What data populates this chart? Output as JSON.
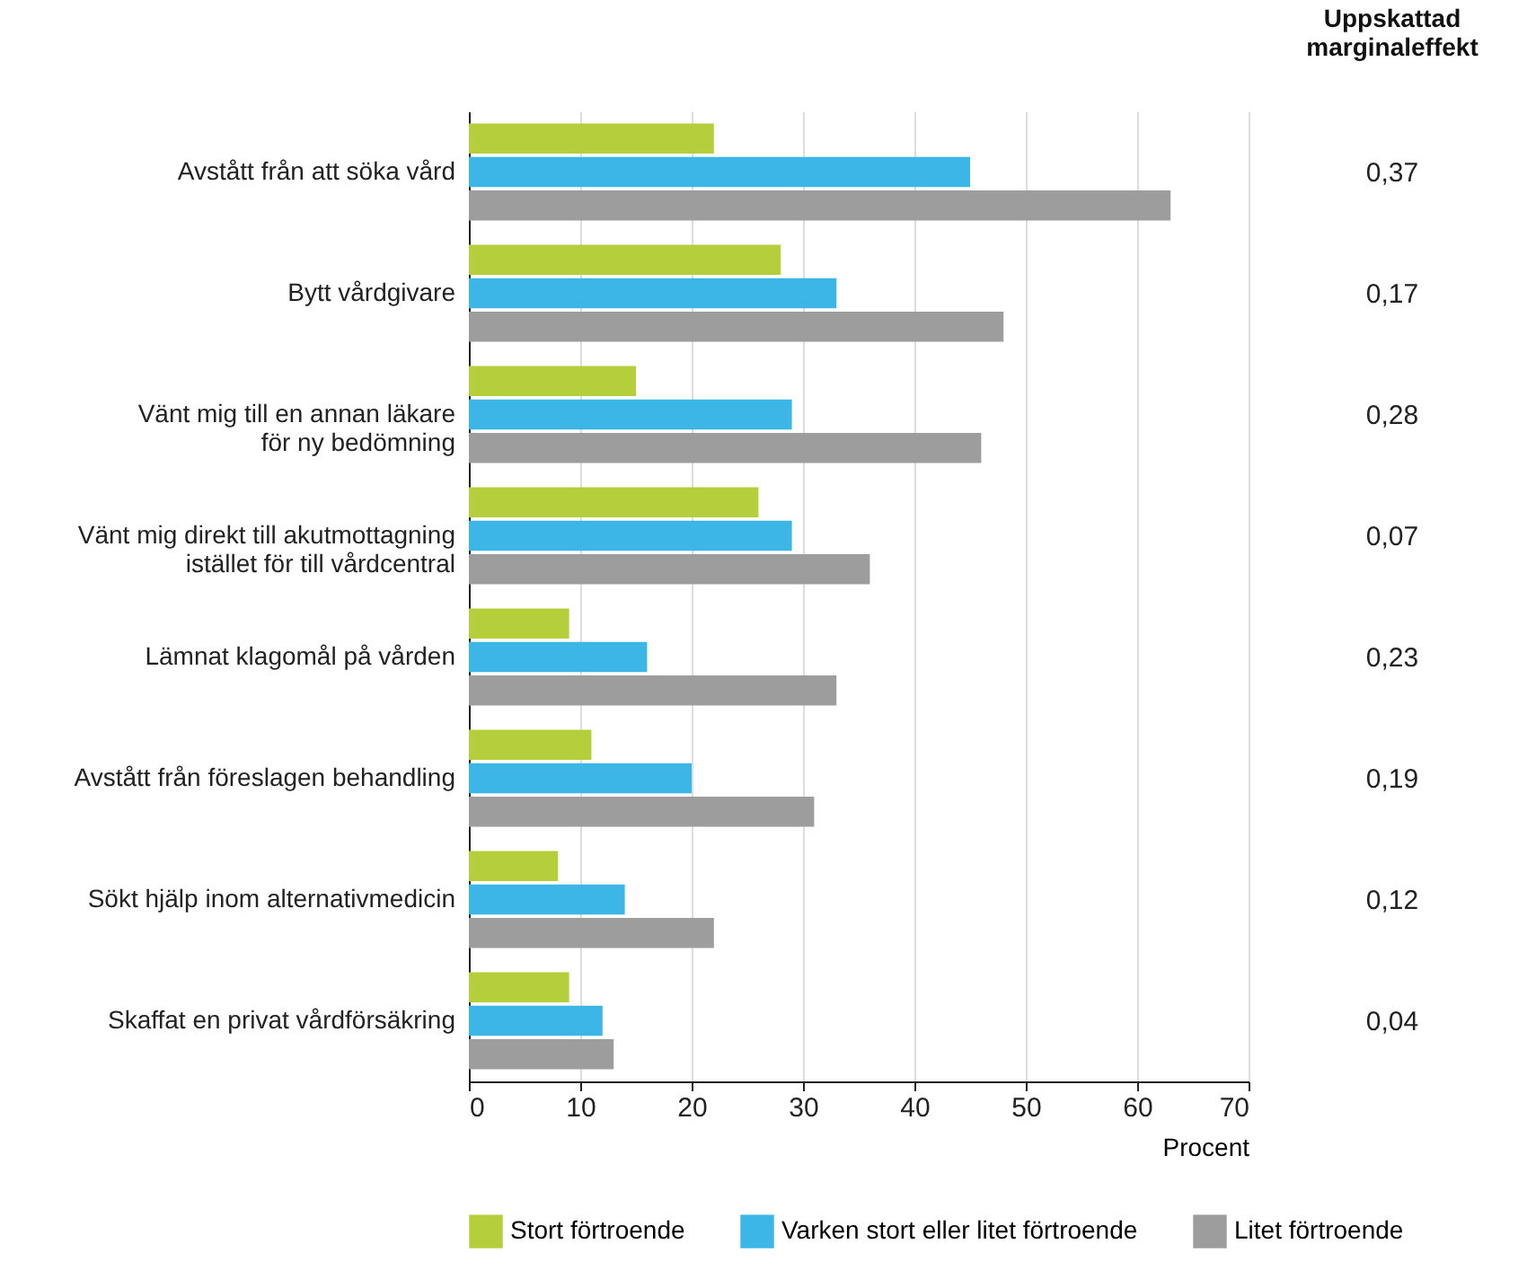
{
  "chart_data": {
    "type": "bar",
    "orientation": "horizontal",
    "categories": [
      "Avstått från att söka vård",
      "Bytt vårdgivare",
      "Vänt mig till en annan läkare\nför ny bedömning",
      "Vänt mig direkt till akutmottagning\nistället för till vårdcentral",
      "Lämnat klagomål på vården",
      "Avstått från föreslagen behandling",
      "Sökt hjälp inom alternativmedicin",
      "Skaffat en privat vårdförsäkring"
    ],
    "series": [
      {
        "name": "Stort förtroende",
        "color": "#b5cf3c",
        "values": [
          22,
          28,
          15,
          26,
          9,
          11,
          8,
          9
        ]
      },
      {
        "name": "Varken stort eller litet förtroende",
        "color": "#3bb6e6",
        "values": [
          45,
          33,
          29,
          29,
          16,
          20,
          14,
          12
        ]
      },
      {
        "name": "Litet förtroende",
        "color": "#9d9d9d",
        "values": [
          63,
          48,
          46,
          36,
          33,
          31,
          22,
          13
        ]
      }
    ],
    "xlim": [
      0,
      70
    ],
    "xticks": [
      0,
      10,
      20,
      30,
      40,
      50,
      60,
      70
    ],
    "xlabel": "Procent",
    "grid": "x",
    "legend": "bottom",
    "annotations": [
      "Uppskattad\nmarginaleffekt",
      "0,37",
      "0,17",
      "0,28",
      "0,07",
      "0,23",
      "0,19",
      "0,12",
      "0,04"
    ]
  }
}
